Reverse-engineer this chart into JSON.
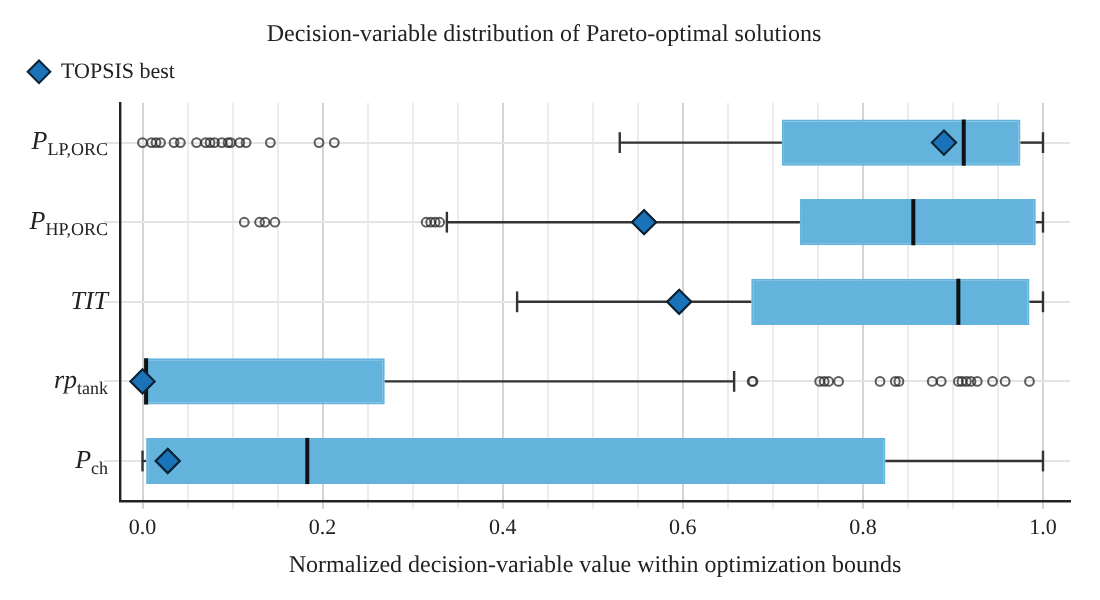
{
  "chart_data": {
    "type": "box",
    "orientation": "horizontal",
    "title": "Decision-variable distribution of Pareto-optimal solutions",
    "xlabel": "Normalized decision-variable value within optimization bounds",
    "categories": [
      "P$_{LP,ORC}$",
      "P$_{HP,ORC}$",
      "TIT",
      "rp$_{tank}$",
      "P$_{ch}$"
    ],
    "color": "#63b3dc",
    "boxes": [
      {
        "low": 0.53,
        "q1": 0.71,
        "median": 0.912,
        "q3": 0.975,
        "high": 1.0,
        "outliers": [
          0.0,
          0.01,
          0.015,
          0.02,
          0.035,
          0.042,
          0.06,
          0.07,
          0.075,
          0.08,
          0.088,
          0.095,
          0.098,
          0.108,
          0.115,
          0.142,
          0.196,
          0.213
        ]
      },
      {
        "low": 0.338,
        "q1": 0.73,
        "median": 0.856,
        "q3": 0.992,
        "high": 1.0,
        "outliers": [
          0.113,
          0.13,
          0.136,
          0.147,
          0.315,
          0.32,
          0.325,
          0.33
        ]
      },
      {
        "low": 0.416,
        "q1": 0.676,
        "median": 0.906,
        "q3": 0.985,
        "high": 1.0
      },
      {
        "low": 0.0,
        "q1": 0.0,
        "median": 0.004,
        "q3": 0.269,
        "high": 0.657,
        "outliers": [
          0.677,
          0.678,
          0.752,
          0.757,
          0.762,
          0.773,
          0.819,
          0.836,
          0.84,
          0.877,
          0.887,
          0.906,
          0.91,
          0.915,
          0.92,
          0.927,
          0.944,
          0.958,
          0.985
        ]
      },
      {
        "low": 0.0,
        "q1": 0.004,
        "median": 0.183,
        "q3": 0.825,
        "high": 1.0
      }
    ],
    "series": [
      {
        "type": "scatter",
        "name": "TOPSIS best",
        "color": "#1a72b8",
        "marker": "diamond",
        "x": [
          "P$_{LP,ORC}$",
          "P$_{HP,ORC}$",
          "TIT",
          "rp$_{tank}$",
          "P$_{ch}$"
        ],
        "values": [
          0.89,
          0.557,
          0.596,
          0.0,
          0.028
        ]
      }
    ],
    "xlim": [
      -0.025,
      1.03
    ],
    "xticks": [
      {
        "value": 0,
        "label": "0.0"
      },
      {
        "value": 0.05,
        "label": null
      },
      {
        "value": 0.1,
        "label": null
      },
      {
        "value": 0.15,
        "label": null
      },
      {
        "value": 0.2,
        "label": "0.2"
      },
      {
        "value": 0.25,
        "label": null
      },
      {
        "value": 0.3,
        "label": null
      },
      {
        "value": 0.35,
        "label": null
      },
      {
        "value": 0.4,
        "label": "0.4"
      },
      {
        "value": 0.45,
        "label": null
      },
      {
        "value": 0.5,
        "label": null
      },
      {
        "value": 0.55,
        "label": null
      },
      {
        "value": 0.6,
        "label": "0.6"
      },
      {
        "value": 0.65,
        "label": null
      },
      {
        "value": 0.7,
        "label": null
      },
      {
        "value": 0.75,
        "label": null
      },
      {
        "value": 0.8,
        "label": "0.8"
      },
      {
        "value": 0.85,
        "label": null
      },
      {
        "value": 0.9,
        "label": null
      },
      {
        "value": 0.95,
        "label": null
      },
      {
        "value": 1.0,
        "label": "1.0"
      }
    ],
    "grid": true,
    "legend": "top left"
  }
}
